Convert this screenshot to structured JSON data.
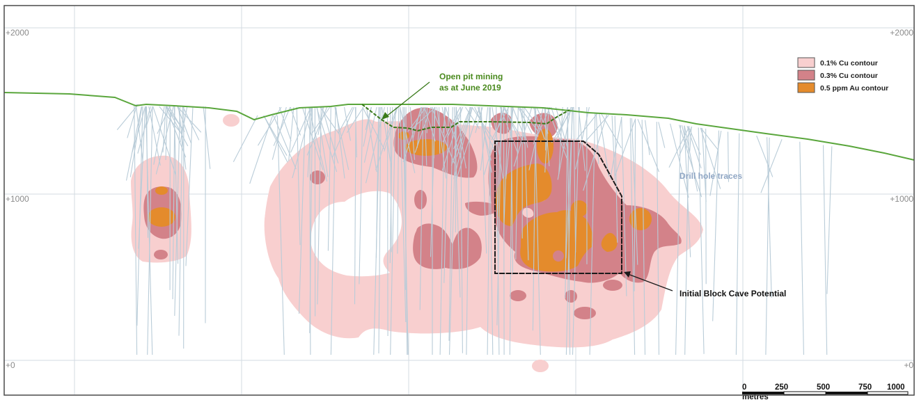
{
  "elevations": {
    "top_left": "+2000",
    "top_right": "+2000",
    "mid_left": "+1000",
    "mid_right": "+1000",
    "bottom_left": "+0",
    "bottom_right": "+0"
  },
  "legend": {
    "items": [
      {
        "label": "0.1% Cu contour",
        "color": "#f8cfcf"
      },
      {
        "label": "0.3% Cu contour",
        "color": "#d38289"
      },
      {
        "label": "0.5 ppm Au contour",
        "color": "#e48b2c"
      }
    ]
  },
  "annotations": {
    "open_pit_line1": "Open pit mining",
    "open_pit_line2": "as at June 2019",
    "block_cave": "Initial Block Cave Potential",
    "drill_holes": "Drill hole traces"
  },
  "scale_bar": {
    "ticks": [
      "0",
      "250",
      "500",
      "750",
      "1000"
    ],
    "unit": "metres"
  },
  "colors": {
    "topography": "#5aa63c",
    "pit": "#3a7a1a",
    "drill_traces": "#b9ccd8",
    "grid": "#d3dbe2"
  }
}
